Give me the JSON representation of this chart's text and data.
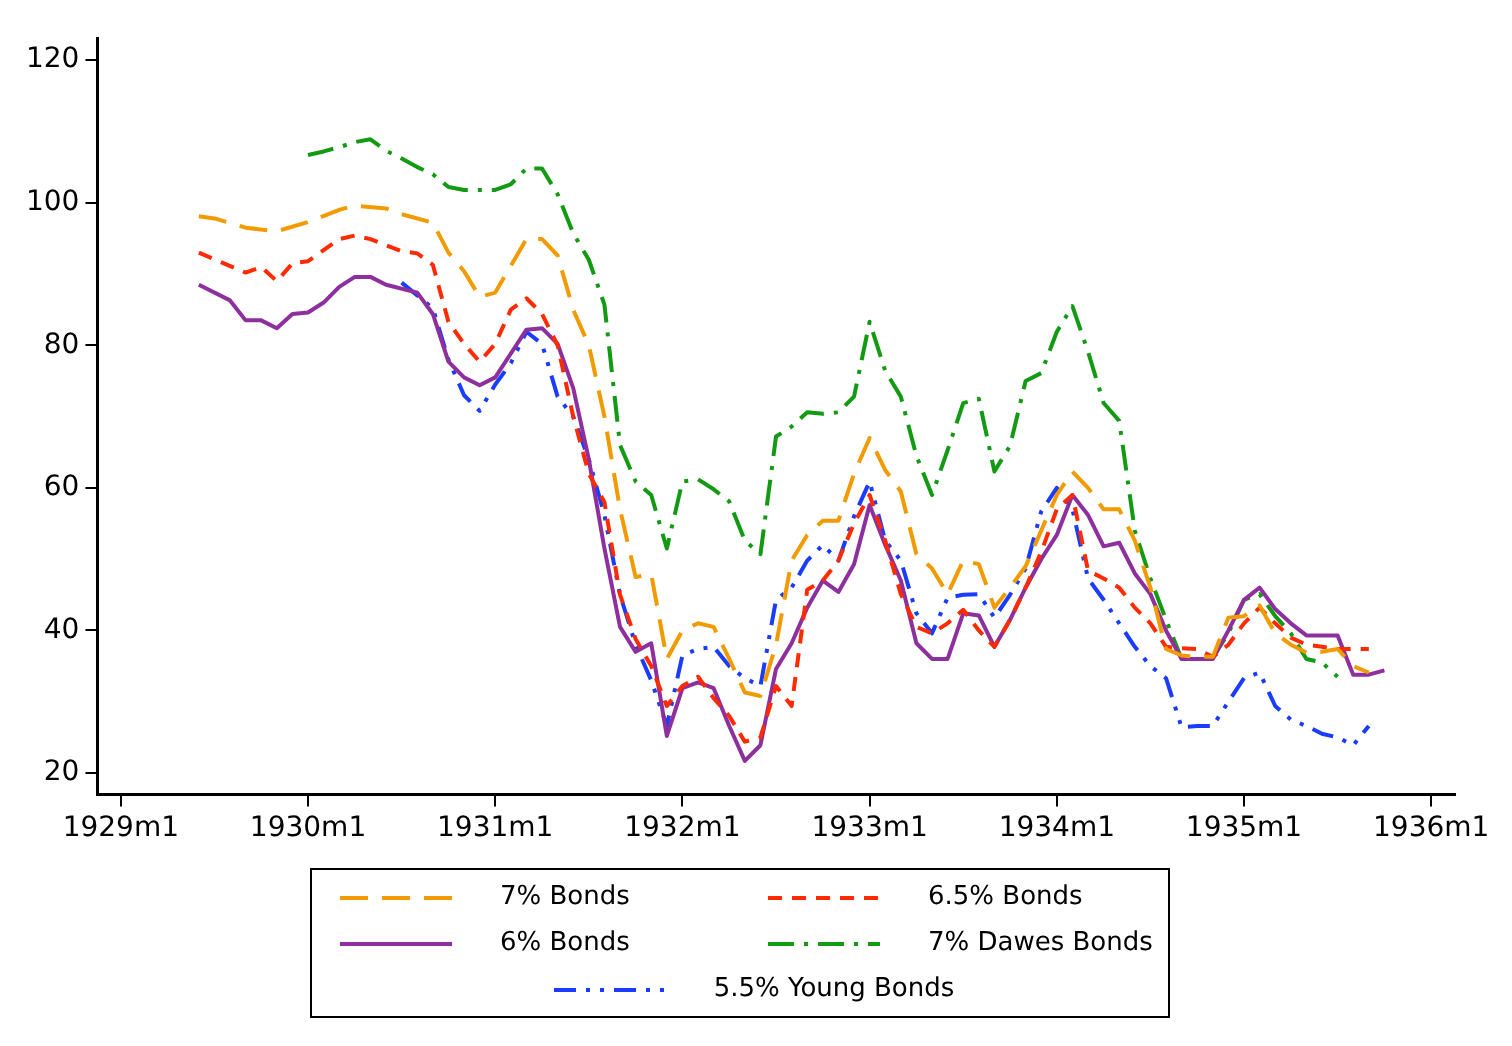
{
  "chart_data": {
    "type": "line",
    "xlim": [
      "1928-11-16",
      "1936-02-16"
    ],
    "xticks": [
      {
        "value": "1929-01",
        "label": "1929m1"
      },
      {
        "value": "1930-01",
        "label": "1930m1"
      },
      {
        "value": "1931-01",
        "label": "1931m1"
      },
      {
        "value": "1932-01",
        "label": "1932m1"
      },
      {
        "value": "1933-01",
        "label": "1933m1"
      },
      {
        "value": "1934-01",
        "label": "1934m1"
      },
      {
        "value": "1935-01",
        "label": "1935m1"
      },
      {
        "value": "1936-01",
        "label": "1936m1"
      }
    ],
    "ylim": [
      17,
      123
    ],
    "yticks": [
      20,
      40,
      60,
      80,
      100,
      120
    ],
    "grid": false,
    "legend": "bottom",
    "marker": "none",
    "series": [
      {
        "name": "7% Bonds",
        "color": "#f29b00",
        "line_style": "dashed",
        "x": [
          "1929-06",
          "1929-07",
          "1929-09",
          "1929-11",
          "1930-01",
          "1930-03",
          "1930-04",
          "1930-06",
          "1930-07",
          "1930-09",
          "1930-10",
          "1930-11",
          "1930-12",
          "1931-01",
          "1931-03",
          "1931-04",
          "1931-05",
          "1931-06",
          "1931-07",
          "1931-08",
          "1931-09",
          "1931-10",
          "1931-11",
          "1931-12",
          "1932-01",
          "1932-02",
          "1932-03",
          "1932-04",
          "1932-05",
          "1932-06",
          "1932-07",
          "1932-08",
          "1932-09",
          "1932-10",
          "1932-11",
          "1932-12",
          "1933-01",
          "1933-02",
          "1933-03",
          "1933-04",
          "1933-05",
          "1933-06",
          "1933-07",
          "1933-08",
          "1933-09",
          "1933-10",
          "1933-11",
          "1933-12",
          "1934-01",
          "1934-02",
          "1934-03",
          "1934-04",
          "1934-05",
          "1934-06",
          "1934-07",
          "1934-08",
          "1934-09",
          "1934-10",
          "1934-11",
          "1934-12",
          "1935-01",
          "1935-02",
          "1935-03",
          "1935-04",
          "1935-05",
          "1935-06",
          "1935-07",
          "1935-08",
          "1935-09"
        ],
        "values": [
          98.1,
          97.8,
          96.5,
          96,
          97.3,
          99,
          99.6,
          99.2,
          98.4,
          97.2,
          93,
          90.4,
          86.8,
          87.4,
          94.9,
          94.9,
          92.6,
          85,
          80,
          70,
          57,
          47.5,
          47.9,
          36,
          40,
          41,
          40.5,
          36,
          31.3,
          30.8,
          38,
          49.8,
          53.4,
          55.4,
          55.4,
          62,
          67,
          62.5,
          59.5,
          50.7,
          48.7,
          45.1,
          49.8,
          49.3,
          43.2,
          46,
          49,
          54,
          59,
          62.3,
          60,
          57,
          57,
          52.6,
          46,
          37.4,
          36.5,
          36.3,
          36.3,
          41.8,
          42,
          43.5,
          39.6,
          38,
          36.9,
          37,
          37.4,
          35,
          34.1
        ]
      },
      {
        "name": "6.5% Bonds",
        "color": "#ff2a00",
        "line_style": "dashed",
        "x": [
          "1929-06",
          "1929-09",
          "1929-10",
          "1929-11",
          "1929-12",
          "1930-01",
          "1930-03",
          "1930-04",
          "1930-05",
          "1930-07",
          "1930-08",
          "1930-09",
          "1930-10",
          "1930-11",
          "1930-12",
          "1931-01",
          "1931-02",
          "1931-03",
          "1931-04",
          "1931-05",
          "1931-06",
          "1931-07",
          "1931-08",
          "1931-09",
          "1931-10",
          "1931-11",
          "1931-12",
          "1932-01",
          "1932-02",
          "1932-03",
          "1932-04",
          "1932-05",
          "1932-06",
          "1932-07",
          "1932-08",
          "1932-09",
          "1932-10",
          "1932-11",
          "1932-12",
          "1933-01",
          "1933-02",
          "1933-03",
          "1933-04",
          "1933-05",
          "1933-06",
          "1933-07",
          "1933-08",
          "1933-09",
          "1933-10",
          "1933-11",
          "1933-12",
          "1934-01",
          "1934-02",
          "1934-03",
          "1934-04",
          "1934-05",
          "1934-06",
          "1934-07",
          "1934-08",
          "1934-09",
          "1934-10",
          "1934-11",
          "1934-12",
          "1935-01",
          "1935-02",
          "1935-03",
          "1935-04",
          "1935-05",
          "1935-06",
          "1935-07",
          "1935-08",
          "1935-09"
        ],
        "values": [
          93,
          90.2,
          91,
          89,
          91.5,
          91.8,
          94.9,
          95.4,
          94.9,
          93.2,
          92.9,
          91.3,
          83.3,
          80.2,
          77.7,
          80.2,
          85,
          86.6,
          84.4,
          80,
          70,
          62,
          58,
          45,
          38.8,
          35,
          29.4,
          32.2,
          33.5,
          30.5,
          28,
          24.4,
          25,
          32.2,
          29.4,
          45.7,
          47,
          49.8,
          55,
          59,
          52.6,
          45.1,
          40.5,
          39.6,
          41,
          42.9,
          40,
          37.7,
          41.5,
          46,
          51,
          57,
          59,
          48.4,
          47.3,
          46,
          43.2,
          41,
          37.7,
          37.5,
          37.4,
          36.3,
          38,
          41,
          43.2,
          41,
          39,
          38,
          37.7,
          37.4,
          37.4,
          37.4
        ]
      },
      {
        "name": "6% Bonds",
        "color": "#8e2f9e",
        "line_style": "solid",
        "x": [
          "1929-06",
          "1929-08",
          "1929-09",
          "1929-10",
          "1929-11",
          "1929-12",
          "1930-01",
          "1930-02",
          "1930-03",
          "1930-04",
          "1930-05",
          "1930-06",
          "1930-08",
          "1930-09",
          "1930-10",
          "1930-11",
          "1930-12",
          "1931-01",
          "1931-03",
          "1931-04",
          "1931-05",
          "1931-06",
          "1931-07",
          "1931-08",
          "1931-09",
          "1931-10",
          "1931-11",
          "1931-12",
          "1932-01",
          "1932-02",
          "1932-03",
          "1932-04",
          "1932-05",
          "1932-06",
          "1932-07",
          "1932-08",
          "1932-09",
          "1932-10",
          "1932-11",
          "1932-12",
          "1933-01",
          "1933-02",
          "1933-03",
          "1933-04",
          "1933-05",
          "1933-06",
          "1933-07",
          "1933-08",
          "1933-09",
          "1933-10",
          "1933-11",
          "1933-12",
          "1934-01",
          "1934-02",
          "1934-03",
          "1934-04",
          "1934-05",
          "1934-06",
          "1934-07",
          "1934-08",
          "1934-09",
          "1934-10",
          "1934-11",
          "1934-12",
          "1935-01",
          "1935-02",
          "1935-03",
          "1935-04",
          "1935-05",
          "1935-06",
          "1935-07",
          "1935-08",
          "1935-09",
          "1935-10"
        ],
        "values": [
          88.5,
          86.3,
          83.5,
          83.5,
          82.4,
          84.4,
          84.6,
          86,
          88.2,
          89.6,
          89.6,
          88.5,
          87.4,
          84.4,
          77.7,
          75.5,
          74.4,
          75.5,
          82.2,
          82.4,
          80.2,
          74,
          64,
          51.5,
          40.5,
          37,
          38.2,
          25.2,
          31.9,
          32.7,
          31.9,
          26.6,
          21.7,
          23.9,
          34.6,
          38.2,
          43.2,
          47,
          45.4,
          49.3,
          57.6,
          52,
          47,
          38.2,
          36,
          36,
          42.4,
          42.1,
          37.7,
          41.5,
          46,
          50,
          53.4,
          59,
          56.2,
          51.8,
          52.3,
          48,
          45.1,
          40,
          36,
          36,
          36,
          40,
          44.3,
          46,
          43,
          41,
          39.3,
          39.3,
          39.3,
          33.8,
          33.8,
          34.4
        ]
      },
      {
        "name": "7% Dawes Bonds",
        "color": "#139a13",
        "line_style": "dashed",
        "x": [
          "1930-01",
          "1930-02",
          "1930-03",
          "1930-04",
          "1930-05",
          "1930-06",
          "1930-07",
          "1930-08",
          "1930-09",
          "1930-10",
          "1930-11",
          "1930-12",
          "1931-01",
          "1931-02",
          "1931-03",
          "1931-04",
          "1931-05",
          "1931-06",
          "1931-07",
          "1931-08",
          "1931-09",
          "1931-10",
          "1931-11",
          "1931-12",
          "1932-01",
          "1932-02",
          "1932-03",
          "1932-04",
          "1932-05",
          "1932-06",
          "1932-07",
          "1932-08",
          "1932-09",
          "1932-10",
          "1932-11",
          "1932-12",
          "1933-01",
          "1933-02",
          "1933-03",
          "1933-04",
          "1933-05",
          "1933-06",
          "1933-07",
          "1933-08",
          "1933-09",
          "1933-10",
          "1933-11",
          "1933-12",
          "1934-01",
          "1934-02",
          "1934-03",
          "1934-04",
          "1934-05",
          "1934-06",
          "1934-07",
          "1934-08",
          "1934-09",
          "1934-10",
          "1934-11",
          "1934-12",
          "1935-01",
          "1935-02",
          "1935-03",
          "1935-04",
          "1935-05",
          "1935-06",
          "1935-07"
        ],
        "values": [
          106.7,
          107.2,
          107.8,
          108.5,
          108.9,
          107.3,
          106.2,
          105,
          104,
          102.2,
          101.8,
          101.8,
          101.8,
          102.6,
          104.8,
          104.8,
          101.2,
          95.7,
          92,
          85.7,
          66,
          60.9,
          59,
          51.5,
          60.9,
          61.2,
          59.8,
          58.1,
          52.6,
          50.7,
          67.2,
          68.6,
          70.6,
          70.4,
          70.6,
          72.8,
          83.3,
          76.4,
          72.8,
          64.5,
          59,
          65.3,
          71.9,
          72.5,
          62.3,
          65.9,
          75,
          76.1,
          81.9,
          85.5,
          79.1,
          71.9,
          69.4,
          54,
          47.3,
          41.5,
          36,
          36,
          36.3,
          39.6,
          44.3,
          45.1,
          42,
          39.6,
          36,
          35.5,
          33.5
        ]
      },
      {
        "name": "5.5% Young Bonds",
        "color": "#1a3cff",
        "line_style": "dashed",
        "x": [
          "1930-07",
          "1930-08",
          "1930-09",
          "1930-10",
          "1930-11",
          "1930-12",
          "1931-01",
          "1931-02",
          "1931-03",
          "1931-04",
          "1931-05",
          "1931-06",
          "1931-07",
          "1931-08",
          "1931-09",
          "1931-10",
          "1931-11",
          "1931-12",
          "1932-01",
          "1932-02",
          "1932-03",
          "1932-04",
          "1932-05",
          "1932-06",
          "1932-07",
          "1932-08",
          "1932-09",
          "1932-10",
          "1932-11",
          "1932-12",
          "1933-01",
          "1933-02",
          "1933-03",
          "1933-04",
          "1933-05",
          "1933-06",
          "1933-07",
          "1933-08",
          "1933-09",
          "1933-10",
          "1933-11",
          "1933-12",
          "1934-01",
          "1934-02",
          "1934-03",
          "1934-04",
          "1934-05",
          "1934-06",
          "1934-07",
          "1934-08",
          "1934-09",
          "1934-10",
          "1934-11",
          "1934-12",
          "1935-01",
          "1935-02",
          "1935-03",
          "1935-04",
          "1935-05",
          "1935-06",
          "1935-07",
          "1935-08",
          "1935-09"
        ],
        "values": [
          88.8,
          87,
          85.2,
          78,
          73,
          70.8,
          74.5,
          77.5,
          81.9,
          80.2,
          72.8,
          70,
          64,
          56.2,
          45,
          38,
          33,
          26.6,
          36.5,
          37.4,
          37.7,
          35,
          33.3,
          32.2,
          44.3,
          46,
          49.8,
          52,
          49.8,
          56,
          60.9,
          52.6,
          49.8,
          42.4,
          39.6,
          44.6,
          45,
          45.1,
          41.8,
          45,
          48.7,
          56.7,
          60,
          57,
          47.3,
          44.3,
          41,
          37.7,
          35,
          33.3,
          26.4,
          26.6,
          26.6,
          30,
          33.3,
          34.1,
          29.4,
          27.5,
          26.6,
          25.5,
          25,
          23.9,
          26.6
        ]
      }
    ]
  }
}
